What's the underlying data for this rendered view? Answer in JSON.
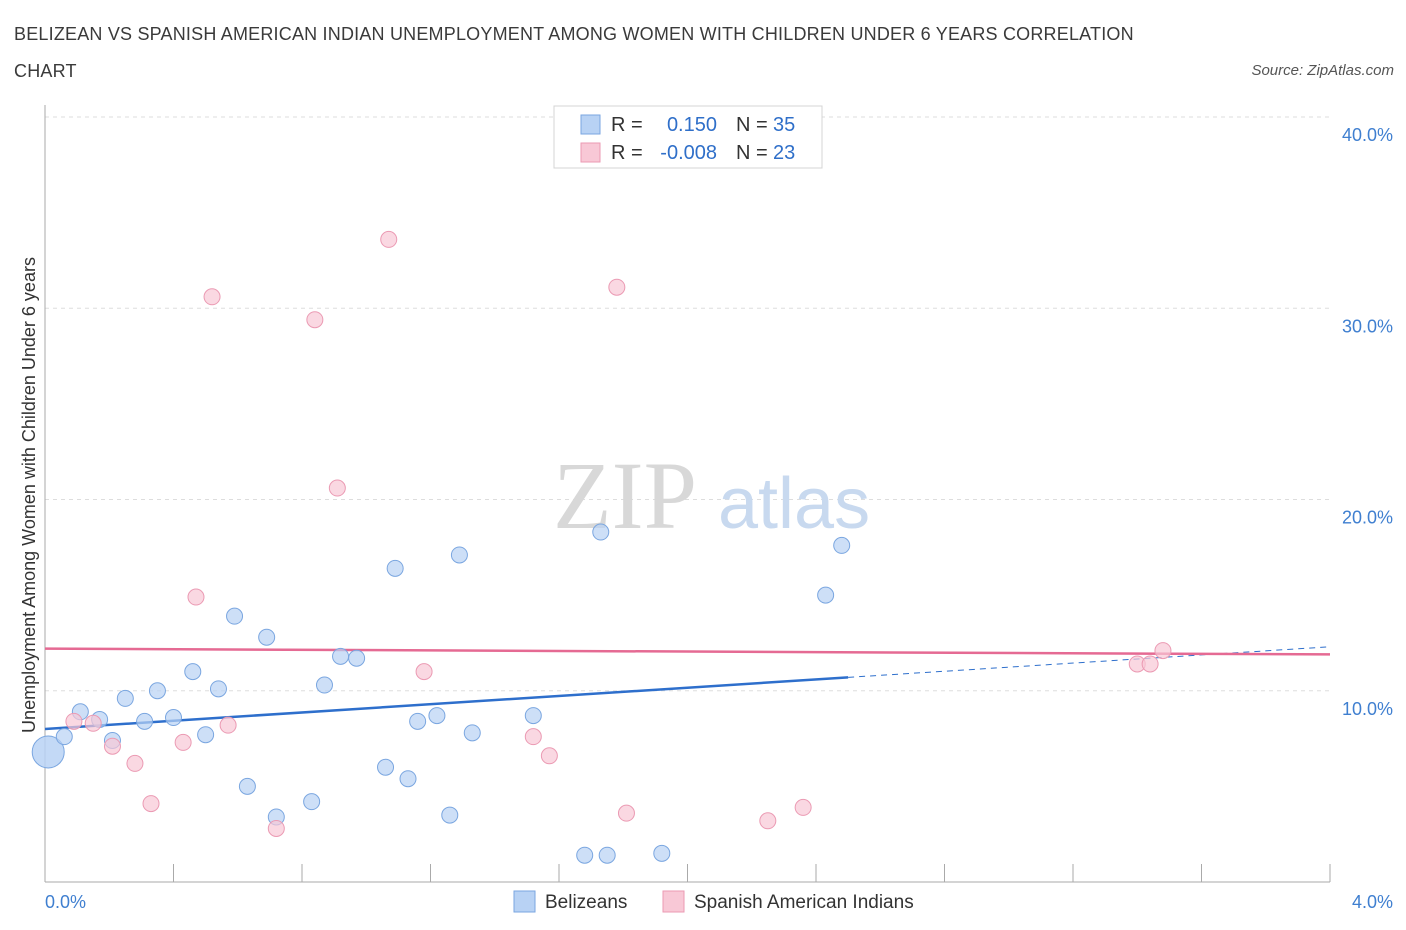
{
  "header": {
    "title": "BELIZEAN VS SPANISH AMERICAN INDIAN UNEMPLOYMENT AMONG WOMEN WITH CHILDREN UNDER 6 YEARS CORRELATION CHART",
    "source": "Source: ZipAtlas.com"
  },
  "watermark": {
    "zip": "ZIP",
    "atlas": "atlas"
  },
  "colors": {
    "blue_fill": "#b8d2f4",
    "blue_stroke": "#7aa6e0",
    "blue_line": "#2e6fcc",
    "pink_fill": "#f8c8d6",
    "pink_stroke": "#eb9ab3",
    "pink_line": "#e56a93",
    "tick_text": "#3f7fd0",
    "grid": "#dddddd"
  },
  "legend": {
    "rows": [
      {
        "r_label": "R =",
        "r_value": "0.150",
        "n_label": "N =",
        "n_value": "35"
      },
      {
        "r_label": "R =",
        "r_value": "-0.008",
        "n_label": "N =",
        "n_value": "23"
      }
    ],
    "series": [
      "Belizeans",
      "Spanish American Indians"
    ]
  },
  "chart_data": {
    "type": "scatter",
    "ylabel": "Unemployment Among Women with Children Under 6 years",
    "xlim": [
      0,
      4
    ],
    "ylim": [
      0,
      40
    ],
    "x_tick_labels": [
      "0.0%",
      "4.0%"
    ],
    "y_ticks": [
      10,
      20,
      30,
      40
    ],
    "y_tick_labels": [
      "10.0%",
      "20.0%",
      "30.0%",
      "40.0%"
    ],
    "grid": true,
    "series": [
      {
        "name": "Belizeans",
        "color": "#b8d2f4",
        "points": [
          [
            0.01,
            6.8
          ],
          [
            0.06,
            7.6
          ],
          [
            0.11,
            8.9
          ],
          [
            0.17,
            8.5
          ],
          [
            0.21,
            7.4
          ],
          [
            0.25,
            9.6
          ],
          [
            0.31,
            8.4
          ],
          [
            0.35,
            10.0
          ],
          [
            0.4,
            8.6
          ],
          [
            0.46,
            11.0
          ],
          [
            0.5,
            7.7
          ],
          [
            0.54,
            10.1
          ],
          [
            0.59,
            13.9
          ],
          [
            0.63,
            5.0
          ],
          [
            0.69,
            12.8
          ],
          [
            0.72,
            3.4
          ],
          [
            0.83,
            4.2
          ],
          [
            0.87,
            10.3
          ],
          [
            0.92,
            11.8
          ],
          [
            0.97,
            11.7
          ],
          [
            1.06,
            6.0
          ],
          [
            1.09,
            16.4
          ],
          [
            1.13,
            5.4
          ],
          [
            1.16,
            8.4
          ],
          [
            1.22,
            8.7
          ],
          [
            1.26,
            3.5
          ],
          [
            1.29,
            17.1
          ],
          [
            1.33,
            7.8
          ],
          [
            1.52,
            8.7
          ],
          [
            1.68,
            1.4
          ],
          [
            1.73,
            18.3
          ],
          [
            1.75,
            1.4
          ],
          [
            1.92,
            1.5
          ],
          [
            2.43,
            15.0
          ],
          [
            2.48,
            17.6
          ]
        ]
      },
      {
        "name": "Spanish American Indians",
        "color": "#f8c8d6",
        "points": [
          [
            0.09,
            8.4
          ],
          [
            0.15,
            8.3
          ],
          [
            0.21,
            7.1
          ],
          [
            0.28,
            6.2
          ],
          [
            0.33,
            4.1
          ],
          [
            0.43,
            7.3
          ],
          [
            0.47,
            14.9
          ],
          [
            0.52,
            30.6
          ],
          [
            0.57,
            8.2
          ],
          [
            0.72,
            2.8
          ],
          [
            0.84,
            29.4
          ],
          [
            0.91,
            20.6
          ],
          [
            1.07,
            33.6
          ],
          [
            1.18,
            11.0
          ],
          [
            1.52,
            7.6
          ],
          [
            1.57,
            6.6
          ],
          [
            1.78,
            31.1
          ],
          [
            1.81,
            3.6
          ],
          [
            2.25,
            3.2
          ],
          [
            2.36,
            3.9
          ],
          [
            3.4,
            11.4
          ],
          [
            3.44,
            11.4
          ],
          [
            3.48,
            12.1
          ]
        ]
      }
    ],
    "trend_lines": [
      {
        "series": "Belizeans",
        "x": [
          0,
          2.5
        ],
        "y": [
          8.0,
          10.7
        ],
        "dashed_x": [
          2.5,
          4.0
        ],
        "dashed_y": [
          10.7,
          12.3
        ]
      },
      {
        "series": "Spanish American Indians",
        "x": [
          0,
          4.0
        ],
        "y": [
          12.2,
          11.9
        ]
      }
    ]
  }
}
